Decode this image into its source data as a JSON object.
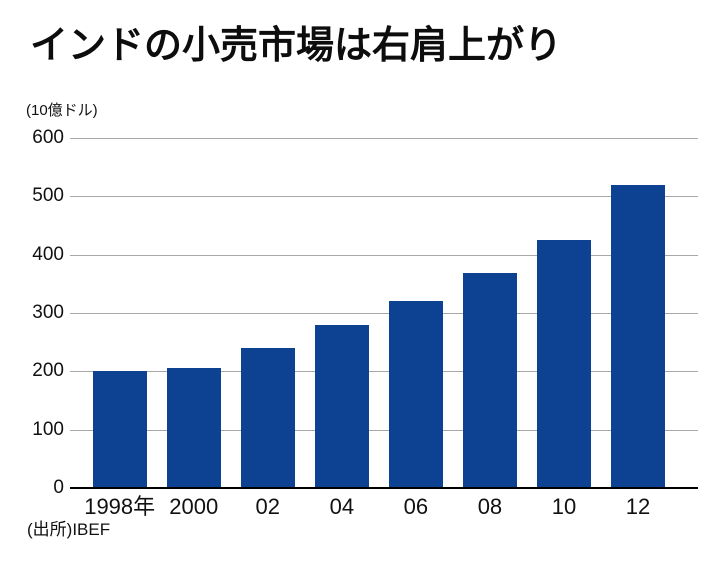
{
  "page": {
    "title": "インドの小売市場は右肩上がり",
    "unit_label": "(10億ドル)",
    "source": "(出所)IBEF"
  },
  "chart_data": {
    "type": "bar",
    "title": "インドの小売市場は右肩上がり",
    "subtitle": "",
    "xlabel": "",
    "ylabel": "(10億ドル)",
    "categories": [
      "1998年",
      "2000",
      "02",
      "04",
      "06",
      "08",
      "10",
      "12"
    ],
    "values": [
      200,
      205,
      240,
      280,
      320,
      368,
      425,
      520
    ],
    "ylim": [
      0,
      600
    ],
    "yticks": [
      0,
      100,
      200,
      300,
      400,
      500,
      600
    ],
    "grid": true,
    "legend_position": "none",
    "source": "(出所)IBEF",
    "colors": {
      "bar": "#0d4191",
      "gridline": "#a8a8a8",
      "axis_line": "#000000",
      "text": "#111111",
      "background": "#ffffff"
    }
  }
}
